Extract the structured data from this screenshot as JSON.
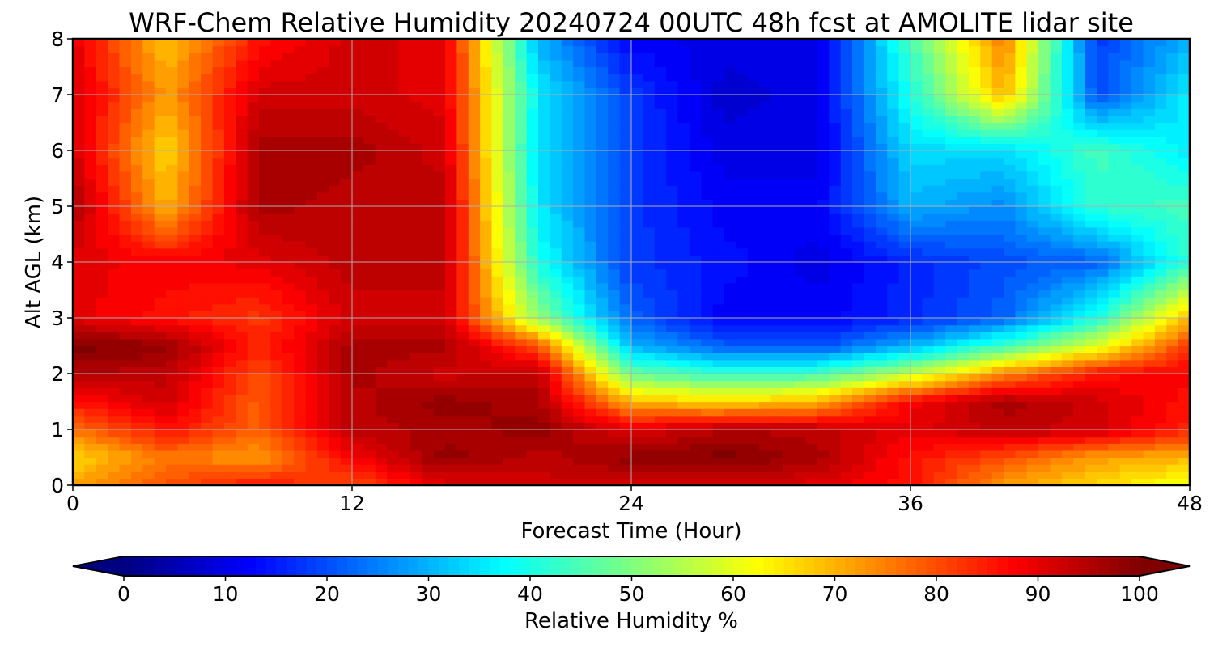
{
  "chart_data": {
    "type": "heatmap",
    "title": "WRF-Chem Relative Humidity 20240724 00UTC 48h fcst at AMOLITE lidar site",
    "xlabel": "Forecast Time (Hour)",
    "ylabel": "Alt AGL (km)",
    "xlim": [
      0,
      48
    ],
    "ylim": [
      0,
      8
    ],
    "x_ticks": [
      "0",
      "12",
      "24",
      "36",
      "48"
    ],
    "y_ticks": [
      "0",
      "1",
      "2",
      "3",
      "4",
      "5",
      "6",
      "7",
      "8"
    ],
    "grid": true,
    "colorbar": {
      "label": "Relative Humidity %",
      "colormap": "jet",
      "range": [
        0,
        100
      ],
      "extend": "both",
      "ticks": [
        "0",
        "10",
        "20",
        "30",
        "40",
        "50",
        "60",
        "70",
        "80",
        "90",
        "100"
      ]
    },
    "x": [
      0,
      4,
      8,
      12,
      16,
      20,
      24,
      28,
      32,
      36,
      40,
      44,
      48
    ],
    "y": [
      0,
      0.5,
      1,
      1.5,
      2,
      2.5,
      3,
      4,
      5,
      6,
      7,
      8
    ],
    "z": [
      [
        72,
        80,
        86,
        80,
        90,
        92,
        92,
        92,
        90,
        86,
        72,
        66,
        60
      ],
      [
        66,
        76,
        72,
        88,
        98,
        94,
        98,
        100,
        96,
        86,
        80,
        72,
        70
      ],
      [
        76,
        86,
        78,
        94,
        96,
        98,
        90,
        95,
        94,
        90,
        94,
        92,
        84
      ],
      [
        86,
        92,
        78,
        94,
        98,
        96,
        70,
        66,
        70,
        88,
        96,
        92,
        86
      ],
      [
        95,
        94,
        80,
        96,
        92,
        94,
        48,
        42,
        44,
        56,
        74,
        86,
        88
      ],
      [
        100,
        98,
        84,
        96,
        96,
        80,
        30,
        22,
        20,
        30,
        44,
        60,
        82
      ],
      [
        90,
        86,
        82,
        92,
        92,
        52,
        22,
        12,
        12,
        16,
        22,
        40,
        70
      ],
      [
        90,
        88,
        90,
        94,
        94,
        40,
        18,
        14,
        10,
        16,
        20,
        22,
        42
      ],
      [
        96,
        70,
        96,
        94,
        94,
        36,
        18,
        12,
        12,
        30,
        26,
        42,
        44
      ],
      [
        92,
        66,
        96,
        96,
        92,
        34,
        18,
        10,
        10,
        34,
        34,
        44,
        36
      ],
      [
        92,
        72,
        92,
        92,
        90,
        36,
        18,
        8,
        10,
        40,
        70,
        20,
        36
      ],
      [
        90,
        68,
        86,
        92,
        90,
        30,
        12,
        10,
        10,
        44,
        76,
        18,
        30
      ]
    ]
  }
}
